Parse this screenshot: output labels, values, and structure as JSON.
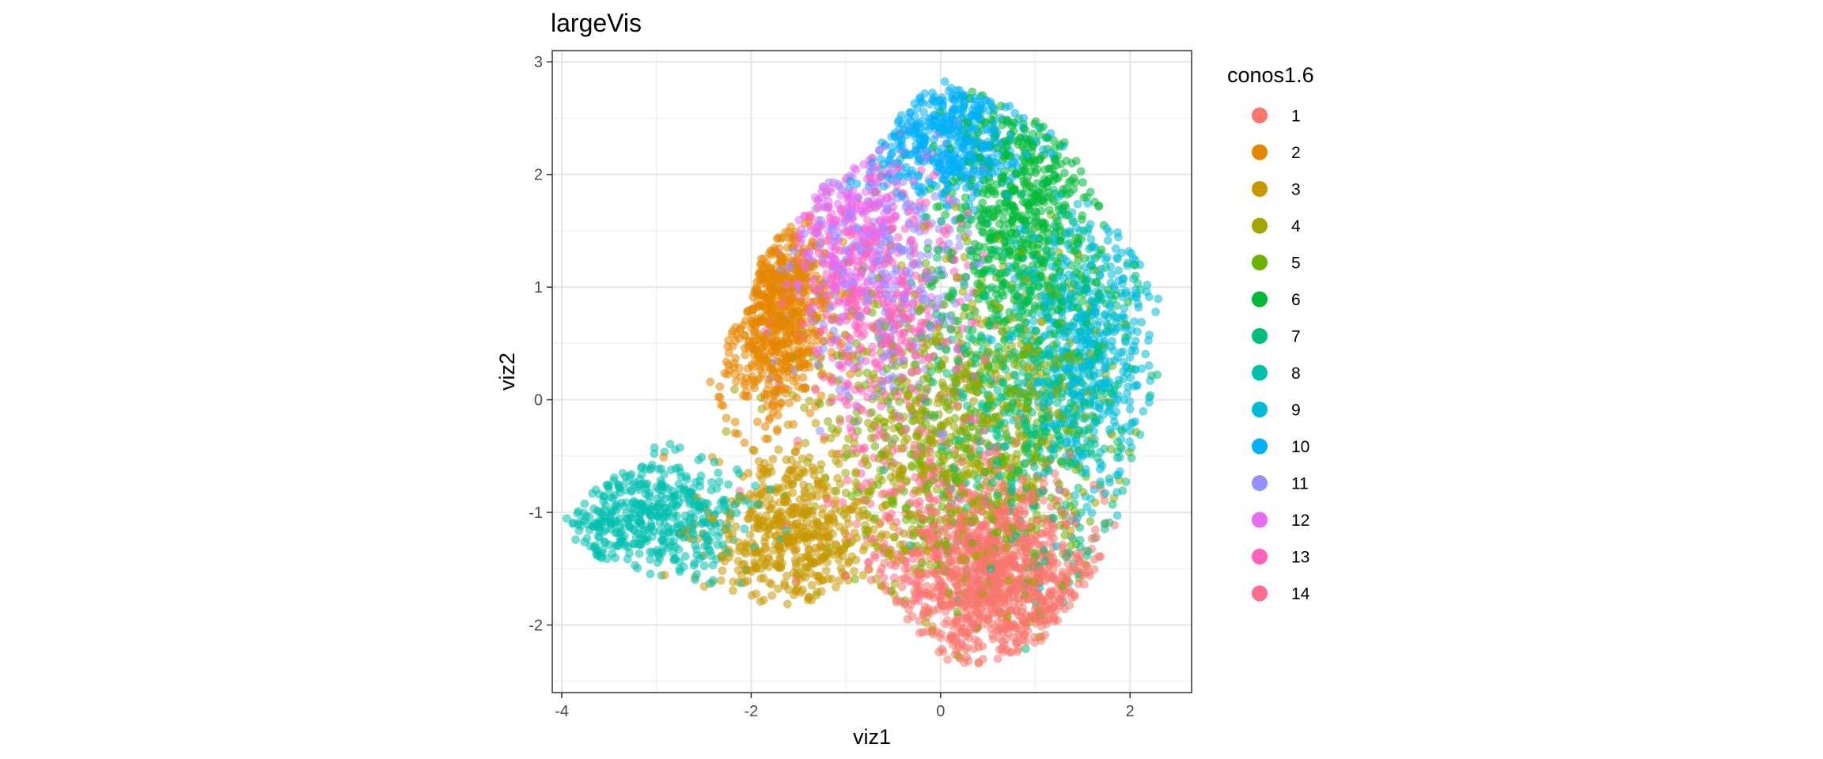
{
  "chart_data": {
    "type": "scatter",
    "title": "largeVis",
    "xlabel": "viz1",
    "ylabel": "viz2",
    "xlim": [
      -4.1,
      2.65
    ],
    "ylim": [
      -2.6,
      3.1
    ],
    "x_ticks": [
      -4,
      -2,
      0,
      2
    ],
    "x_tick_labels": [
      "-4",
      "-2",
      "0",
      "2"
    ],
    "y_ticks": [
      -2,
      -1,
      0,
      1,
      2,
      3
    ],
    "y_tick_labels": [
      "-2",
      "-1",
      "0",
      "1",
      "2",
      "3"
    ],
    "grid": true,
    "point_alpha": 0.55,
    "legend": {
      "title": "conos1.6",
      "position": "right"
    },
    "series": [
      {
        "name": "1",
        "color": "#F8766D",
        "center": [
          0.6,
          -1.55
        ],
        "spread": [
          0.55,
          0.42
        ],
        "n": 1100
      },
      {
        "name": "2",
        "color": "#E58700",
        "center": [
          -1.75,
          0.75
        ],
        "spread": [
          0.3,
          0.45
        ],
        "n": 650
      },
      {
        "name": "3",
        "color": "#C99800",
        "center": [
          -1.55,
          -1.2
        ],
        "spread": [
          0.45,
          0.35
        ],
        "n": 500
      },
      {
        "name": "4",
        "color": "#A3A500",
        "center": [
          0.05,
          -0.35
        ],
        "spread": [
          0.7,
          0.75
        ],
        "n": 550
      },
      {
        "name": "5",
        "color": "#6BB100",
        "center": [
          0.4,
          -0.2
        ],
        "spread": [
          0.7,
          0.7
        ],
        "n": 500
      },
      {
        "name": "6",
        "color": "#00BA38",
        "center": [
          0.9,
          1.7
        ],
        "spread": [
          0.45,
          0.55
        ],
        "n": 600
      },
      {
        "name": "7",
        "color": "#00BF7D",
        "center": [
          0.95,
          0.0
        ],
        "spread": [
          0.55,
          0.75
        ],
        "n": 500
      },
      {
        "name": "8",
        "color": "#00C0AF",
        "center": [
          -3.1,
          -1.05
        ],
        "spread": [
          0.5,
          0.28
        ],
        "n": 450
      },
      {
        "name": "9",
        "color": "#00BCD8",
        "center": [
          1.55,
          0.4
        ],
        "spread": [
          0.4,
          0.65
        ],
        "n": 550
      },
      {
        "name": "10",
        "color": "#00B0F6",
        "center": [
          0.05,
          2.35
        ],
        "spread": [
          0.45,
          0.3
        ],
        "n": 450
      },
      {
        "name": "11",
        "color": "#9590FF",
        "center": [
          -0.6,
          1.2
        ],
        "spread": [
          0.5,
          0.6
        ],
        "n": 300
      },
      {
        "name": "12",
        "color": "#E76BF3",
        "center": [
          -1.05,
          1.55
        ],
        "spread": [
          0.35,
          0.4
        ],
        "n": 250
      },
      {
        "name": "13",
        "color": "#FF62BC",
        "center": [
          -0.65,
          0.9
        ],
        "spread": [
          0.45,
          0.6
        ],
        "n": 400
      },
      {
        "name": "14",
        "color": "#FF6C90",
        "center": [
          -0.3,
          -1.0
        ],
        "spread": [
          0.6,
          0.6
        ],
        "n": 150
      }
    ]
  }
}
